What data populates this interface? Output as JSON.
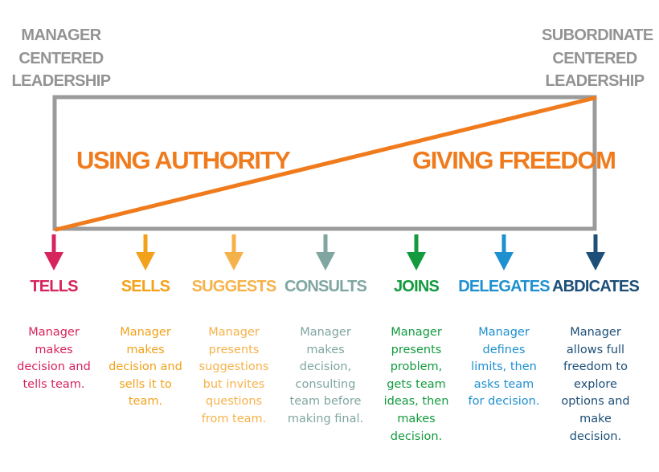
{
  "corner_left": {
    "lines": [
      "MANAGER",
      "CENTERED",
      "LEADERSHIP"
    ]
  },
  "corner_right": {
    "lines": [
      "SUBORDINATE",
      "CENTERED",
      "LEADERSHIP"
    ]
  },
  "zone_left": "USING AUTHORITY",
  "zone_right": "GIVING FREEDOM",
  "colors": {
    "frame": "#9b9b9b",
    "diagonal": "#f07b1d",
    "zone_text": "#f07b1d",
    "corner_text": "#939393"
  },
  "styles": [
    {
      "title": "TELLS",
      "color": "#d6245c",
      "desc": [
        "Manager",
        "makes",
        "decision and",
        "tells team."
      ]
    },
    {
      "title": "SELLS",
      "color": "#f2a21a",
      "desc": [
        "Manager",
        "makes",
        "decision and",
        "sells it to",
        "team."
      ]
    },
    {
      "title": "SUGGESTS",
      "color": "#f6b24a",
      "desc": [
        "Manager",
        "presents",
        "suggestions",
        "but invites",
        "questions",
        "from team."
      ]
    },
    {
      "title": "CONSULTS",
      "color": "#7fa6a0",
      "desc": [
        "Manager",
        "makes",
        "decision,",
        "consulting",
        "team before",
        "making final."
      ]
    },
    {
      "title": "JOINS",
      "color": "#139a3f",
      "desc": [
        "Manager",
        "presents",
        "problem,",
        "gets team",
        "ideas, then",
        "makes",
        "decision."
      ]
    },
    {
      "title": "DELEGATES",
      "color": "#1e90cf",
      "desc": [
        "Manager",
        "defines",
        "limits, then",
        "asks team",
        "for decision."
      ]
    },
    {
      "title": "ABDICATES",
      "color": "#1d4f78",
      "desc": [
        "Manager",
        "allows full",
        "freedom to",
        "explore",
        "options and",
        "make",
        "decision."
      ]
    }
  ]
}
